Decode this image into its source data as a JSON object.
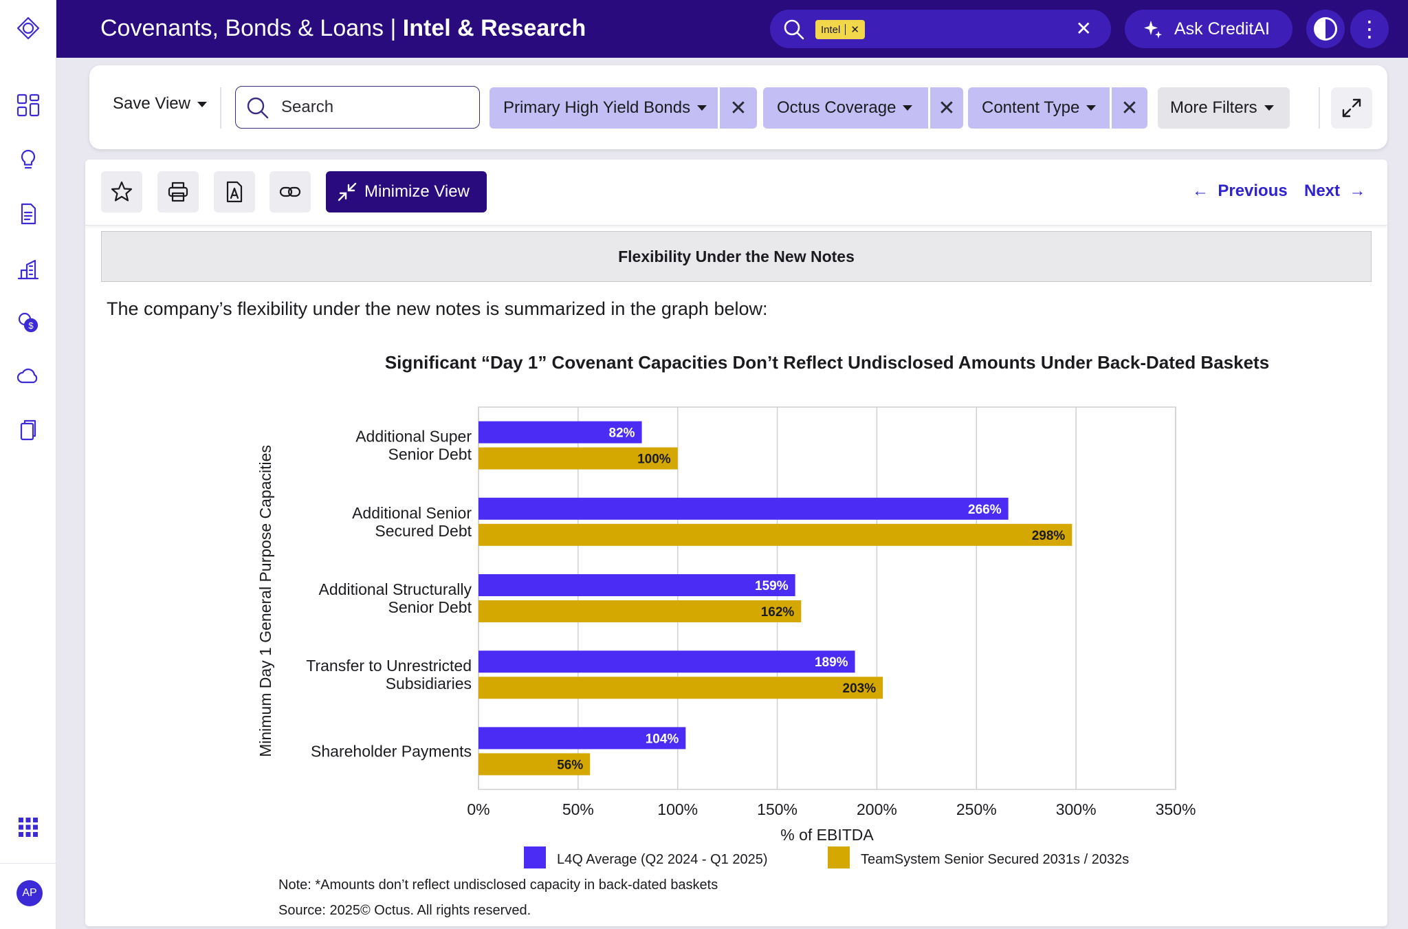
{
  "header": {
    "title_main": "Covenants, Bonds & Loans | ",
    "title_bold": "Intel & Research",
    "search_chip": "Intel",
    "ask_ai_label": "Ask CreditAI"
  },
  "filters": {
    "save_view_label": "Save View",
    "search_placeholder": "Search",
    "pills": [
      "Primary High Yield Bonds",
      "Octus Coverage",
      "Content Type"
    ],
    "more_filters_label": "More Filters"
  },
  "doc_toolbar": {
    "minimize_label": "Minimize View",
    "previous_label": "Previous",
    "next_label": "Next"
  },
  "section": {
    "heading": "Flexibility Under the New Notes",
    "intro": "The company’s flexibility under the new notes is summarized in the graph below:"
  },
  "chart_data": {
    "type": "bar",
    "orientation": "horizontal",
    "title": "Significant “Day 1” Covenant Capacities Don’t Reflect Undisclosed Amounts Under Back-Dated Baskets",
    "xlabel": "% of EBITDA",
    "ylabel": "Minimum Day 1 General Purpose Capacities",
    "categories": [
      [
        "Additional Super",
        "Senior Debt"
      ],
      [
        "Additional Senior",
        "Secured Debt"
      ],
      [
        "Additional Structurally",
        "Senior Debt"
      ],
      [
        "Transfer to Unrestricted",
        "Subsidiaries"
      ],
      [
        "Shareholder Payments"
      ]
    ],
    "series": [
      {
        "name": "L4Q Average (Q2 2024 - Q1 2025)",
        "color": "#4a2cf5",
        "values": [
          82,
          266,
          159,
          189,
          104
        ],
        "labels": [
          "82%",
          "266%",
          "159%",
          "189%",
          "104%"
        ]
      },
      {
        "name": "TeamSystem Senior Secured 2031s / 2032s",
        "color": "#d4a800",
        "values": [
          100,
          298,
          162,
          203,
          56
        ],
        "labels": [
          "100%",
          "298%",
          "162%",
          "203%",
          "56%"
        ]
      }
    ],
    "xlim": [
      0,
      350
    ],
    "xticks": [
      0,
      50,
      100,
      150,
      200,
      250,
      300,
      350
    ],
    "xtick_labels": [
      "0%",
      "50%",
      "100%",
      "150%",
      "200%",
      "250%",
      "300%",
      "350%"
    ],
    "grid": true,
    "legend": "bottom"
  },
  "notes": {
    "note": "Note: *Amounts don’t  reflect undisclosed capacity in back-dated baskets",
    "source": "Source: 2025© Octus. All rights reserved."
  },
  "user": {
    "initials": "AP"
  }
}
